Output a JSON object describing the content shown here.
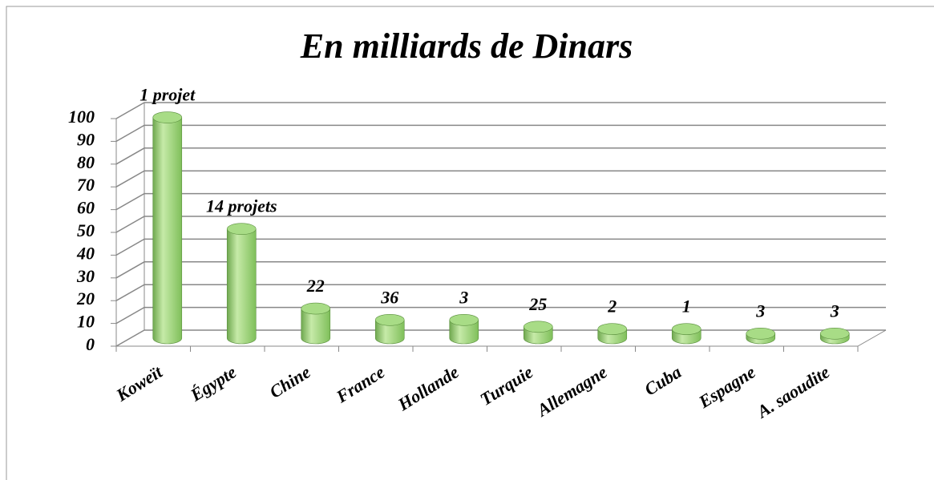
{
  "chart_data": {
    "type": "bar",
    "title": "En milliards de Dinars",
    "categories": [
      "Koweït",
      "Égypte",
      "Chine",
      "France",
      "Hollande",
      "Turquie",
      "Allemagne",
      "Cuba",
      "Espagne",
      "A. saoudite"
    ],
    "values": [
      97,
      48,
      13,
      8,
      8,
      5,
      4,
      4,
      2,
      2
    ],
    "annotations": [
      "1 projet",
      "14 projets",
      "22",
      "36",
      "3",
      "25",
      "2",
      "1",
      "3",
      "3"
    ],
    "color": "#9bd37a",
    "ylim": [
      0,
      100
    ],
    "yticks": [
      0,
      10,
      20,
      30,
      40,
      50,
      60,
      70,
      80,
      90,
      100
    ],
    "grid": true
  }
}
